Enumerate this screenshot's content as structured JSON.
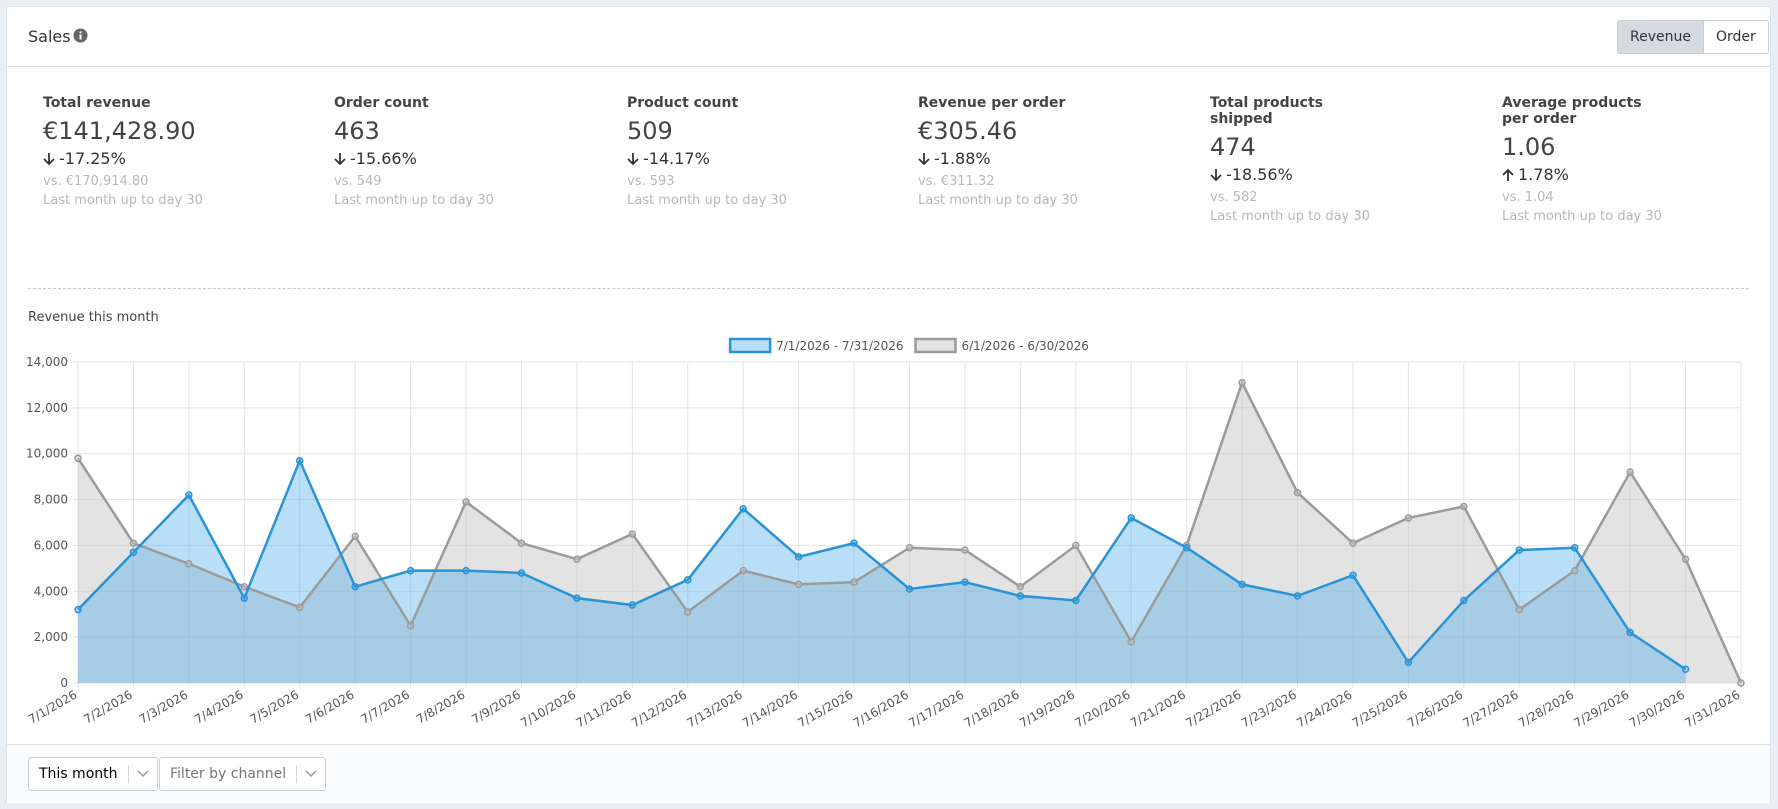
{
  "header": {
    "title": "Sales",
    "toggle": [
      "Revenue",
      "Order"
    ]
  },
  "kpis": [
    {
      "label": "Total revenue",
      "value": "€141,428.90",
      "change": "-17.25%",
      "compare": "vs. €170,914.80",
      "period": "Last month up to day 30"
    },
    {
      "label": "Order count",
      "value": "463",
      "change": "-15.66%",
      "compare": "vs. 549",
      "period": "Last month up to day 30"
    },
    {
      "label": "Product count",
      "value": "509",
      "change": "-14.17%",
      "compare": "vs. 593",
      "period": "Last month up to day 30"
    },
    {
      "label": "Revenue per order",
      "value": "€305.46",
      "change": "-1.88%",
      "compare": "vs. €311.32",
      "period": "Last month up to day 30"
    },
    {
      "label": "Total products shipped",
      "value": "474",
      "change": "-18.56%",
      "compare": "vs. 582",
      "period": "Last month up to day 30"
    },
    {
      "label": "Average products per order",
      "value": "1.06",
      "change": "1.78%",
      "compare": "vs. 1.04",
      "period": "Last month up to day 30"
    }
  ],
  "chart_data": {
    "type": "area",
    "title": "Revenue this month",
    "categories": [
      "7/1/2026",
      "7/2/2026",
      "7/3/2026",
      "7/4/2026",
      "7/5/2026",
      "7/6/2026",
      "7/7/2026",
      "7/8/2026",
      "7/9/2026",
      "7/10/2026",
      "7/11/2026",
      "7/12/2026",
      "7/13/2026",
      "7/14/2026",
      "7/15/2026",
      "7/16/2026",
      "7/17/2026",
      "7/18/2026",
      "7/19/2026",
      "7/20/2026",
      "7/21/2026",
      "7/22/2026",
      "7/23/2026",
      "7/24/2026",
      "7/25/2026",
      "7/26/2026",
      "7/27/2026",
      "7/28/2026",
      "7/29/2026",
      "7/30/2026",
      "7/31/2026"
    ],
    "series": [
      {
        "name": "7/1/2026 - 7/31/2026",
        "color": "#2a93d5",
        "fill": "rgba(54,162,235,0.35)",
        "values": [
          3200,
          5700,
          8200,
          3700,
          9700,
          4200,
          4900,
          4900,
          4800,
          3700,
          3400,
          4500,
          7600,
          5500,
          6100,
          4100,
          4400,
          3800,
          3600,
          7200,
          5900,
          4300,
          3800,
          4700,
          900,
          3600,
          5800,
          5900,
          2200,
          600,
          null
        ]
      },
      {
        "name": "6/1/2026 - 6/30/2026",
        "color": "#9b9b9b",
        "fill": "rgba(200,200,200,0.5)",
        "values": [
          9800,
          6100,
          5200,
          4200,
          3300,
          6400,
          2500,
          7900,
          6100,
          5400,
          6500,
          3100,
          4900,
          4300,
          4400,
          5900,
          5800,
          4200,
          6000,
          1800,
          6000,
          13100,
          8300,
          6100,
          7200,
          7700,
          3200,
          4900,
          9200,
          5400,
          0
        ]
      }
    ],
    "ylim": [
      0,
      14000
    ],
    "yticks": [
      0,
      {
        "value": 2000,
        "label": "2,000"
      },
      {
        "value": 4000,
        "label": "4,000"
      },
      {
        "value": 6000,
        "label": "6,000"
      },
      {
        "value": 8000,
        "label": "8,000"
      },
      {
        "value": 10000,
        "label": "10,000"
      },
      {
        "value": 12000,
        "label": "12,000"
      },
      {
        "value": 14000,
        "label": "14,000"
      }
    ],
    "grid": true
  },
  "filters": [
    "This month",
    "Filter by channel"
  ]
}
